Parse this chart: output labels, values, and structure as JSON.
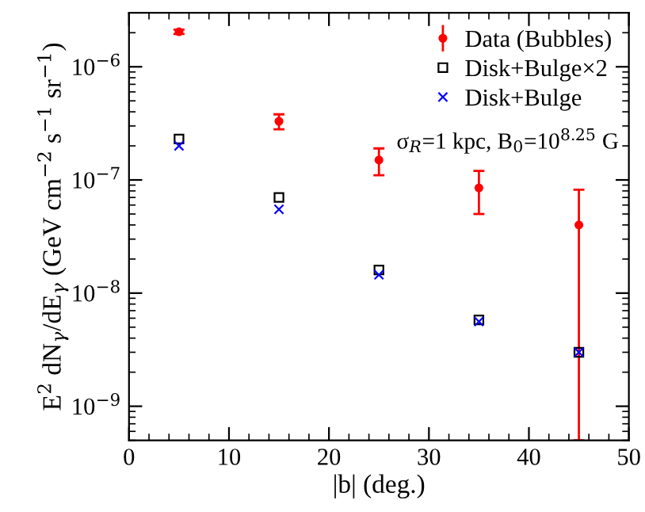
{
  "chart_data": {
    "type": "scatter",
    "xlabel": "|b| (deg.)",
    "ylabel": "E$^{2}$ dN$_{γ}$/dE$_{γ}$ (GeV cm$^{−2}$ s$^{−1}$ sr$^{−1}$)",
    "x": [
      5,
      15,
      25,
      35,
      45
    ],
    "series": [
      {
        "name": "Data (Bubbles)",
        "color": "#ff0000",
        "marker": "circle",
        "values": [
          2.04e-06,
          3.3e-07,
          1.5e-07,
          8.5e-08,
          4e-08
        ],
        "errors": [
          [
            1.95e-06,
            2.13e-06
          ],
          [
            2.8e-07,
            3.8e-07
          ],
          [
            1.1e-07,
            1.9e-07
          ],
          [
            5e-08,
            1.2e-07
          ],
          [
            5e-10,
            8.2e-08
          ]
        ]
      },
      {
        "name": "Disk+Bulge×2",
        "color": "#000000",
        "marker": "square",
        "values": [
          2.3e-07,
          7e-08,
          1.6e-08,
          5.8e-09,
          3e-09
        ]
      },
      {
        "name": "Disk+Bulge",
        "color": "#0000ff",
        "marker": "cross",
        "values": [
          2e-07,
          5.5e-08,
          1.45e-08,
          5.6e-09,
          3e-09
        ]
      }
    ],
    "log": "y",
    "xlim": [
      0,
      50
    ],
    "xticks": [
      0,
      10,
      20,
      30,
      40,
      50
    ],
    "ylim": [
      5e-10,
      3e-06
    ],
    "yticks": [
      {
        "value": 1e-09,
        "label": "10$^{−9}$"
      },
      {
        "value": 1e-08,
        "label": "10$^{−8}$"
      },
      {
        "value": 1e-07,
        "label": "10$^{−7}$"
      },
      {
        "value": 1e-06,
        "label": "10$^{−6}$"
      }
    ],
    "annotations": [
      {
        "text": "σ$_{R}$=1 kpc, B$_{0}$=10$^{8.25}$ G"
      }
    ],
    "legend": "top right",
    "grid": false
  }
}
